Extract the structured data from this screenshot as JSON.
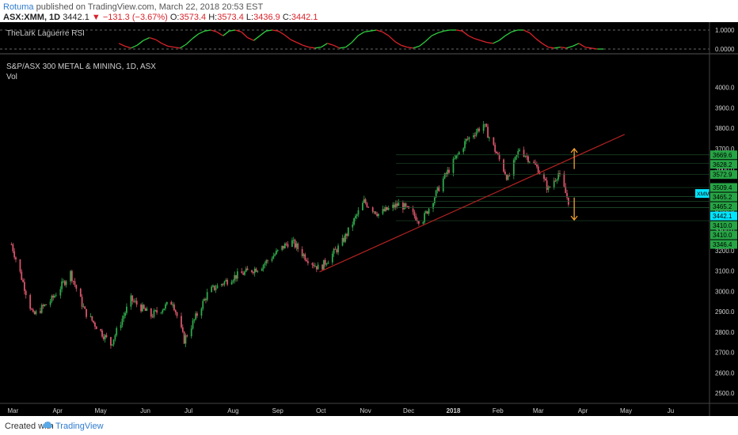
{
  "header": {
    "author": "Rotuma",
    "published_text": "published on TradingView.com, March 22, 2018 20:53 EST",
    "symbol_label": "ASX:XMM, 1D",
    "last_value": "3442.1",
    "change": "▼ −131.3 (−3.67%)",
    "open_label": "O:",
    "open_value": "3573.4",
    "high_label": "H:",
    "high_value": "3573.4",
    "low_label": "L:",
    "low_value": "3436.9",
    "close_label": "C:",
    "close_value": "3442.1"
  },
  "footer": {
    "created_text": "Created with",
    "brand": "TradingView"
  },
  "colors": {
    "background": "#000000",
    "bull": "#2ea84a",
    "bear": "#d6546a",
    "trendline": "#b22222",
    "arrow": "#f0a030",
    "price_tag": "#27a545",
    "last_tag": "#00e5ff",
    "rsi_up": "#2ecc40",
    "rsi_down": "#d8232a"
  },
  "chart_data": {
    "type": "candlestick",
    "title": "S&P/ASX 300 METAL & MINING, 1D, ASX",
    "subtitle": "Vol",
    "ylim": [
      2450,
      4150
    ],
    "yticks": [
      "4000.0",
      "3900.0",
      "3800.0",
      "3700.0",
      "3600.0",
      "3500.0",
      "3400.0",
      "3300.0",
      "3200.0",
      "3100.0",
      "3000.0",
      "2900.0",
      "2800.0",
      "2700.0",
      "2600.0",
      "2500.0"
    ],
    "x_labels": [
      "Mar",
      "Apr",
      "May",
      "Jun",
      "Jul",
      "Aug",
      "Sep",
      "Oct",
      "Nov",
      "Dec",
      "2018",
      "Feb",
      "Mar",
      "Apr",
      "May",
      "Ju"
    ],
    "price_path": [
      {
        "x": "2017-02-28",
        "y": 3230
      },
      {
        "x": "2017-03-15",
        "y": 2880
      },
      {
        "x": "2017-03-28",
        "y": 2960
      },
      {
        "x": "2017-04-10",
        "y": 3090
      },
      {
        "x": "2017-04-20",
        "y": 2900
      },
      {
        "x": "2017-05-08",
        "y": 2740
      },
      {
        "x": "2017-05-22",
        "y": 2960
      },
      {
        "x": "2017-06-05",
        "y": 2880
      },
      {
        "x": "2017-06-20",
        "y": 2950
      },
      {
        "x": "2017-06-28",
        "y": 2760
      },
      {
        "x": "2017-07-15",
        "y": 3000
      },
      {
        "x": "2017-08-01",
        "y": 3070
      },
      {
        "x": "2017-08-20",
        "y": 3120
      },
      {
        "x": "2017-09-10",
        "y": 3250
      },
      {
        "x": "2017-09-20",
        "y": 3170
      },
      {
        "x": "2017-09-30",
        "y": 3110
      },
      {
        "x": "2017-10-15",
        "y": 3230
      },
      {
        "x": "2017-10-31",
        "y": 3440
      },
      {
        "x": "2017-11-10",
        "y": 3380
      },
      {
        "x": "2017-11-25",
        "y": 3430
      },
      {
        "x": "2017-12-10",
        "y": 3340
      },
      {
        "x": "2017-12-25",
        "y": 3550
      },
      {
        "x": "2018-01-10",
        "y": 3740
      },
      {
        "x": "2018-01-22",
        "y": 3820
      },
      {
        "x": "2018-02-08",
        "y": 3550
      },
      {
        "x": "2018-02-16",
        "y": 3700
      },
      {
        "x": "2018-03-01",
        "y": 3600
      },
      {
        "x": "2018-03-08",
        "y": 3500
      },
      {
        "x": "2018-03-15",
        "y": 3580
      },
      {
        "x": "2018-03-22",
        "y": 3442
      }
    ],
    "trendline": {
      "start": {
        "x": "2017-09-30",
        "y": 3095
      },
      "end": {
        "x": "2018-04-30",
        "y": 3770
      }
    },
    "price_levels": [
      "3669.6",
      "3628.2",
      "3572.9",
      "3509.4",
      "3465.2",
      "3465.2",
      "3442.1",
      "3410.0",
      "3410.0",
      "3346.4"
    ],
    "last_price_tag": "XMM",
    "rsi": {
      "title": "TheLark Laguerre RSI",
      "yticks": [
        "1.0000",
        "0.0000"
      ],
      "values": [
        0.3,
        0.15,
        0.05,
        0.2,
        0.45,
        0.6,
        0.5,
        0.3,
        0.15,
        0.1,
        0.05,
        0.25,
        0.55,
        0.8,
        0.95,
        1.0,
        0.9,
        0.7,
        0.95,
        1.0,
        0.9,
        0.6,
        0.45,
        0.7,
        0.95,
        1.0,
        0.95,
        0.75,
        0.5,
        0.35,
        0.2,
        0.1,
        0.05,
        0.1,
        0.3,
        0.2,
        0.05,
        0.1,
        0.35,
        0.7,
        0.9,
        0.95,
        1.0,
        0.9,
        0.7,
        0.4,
        0.2,
        0.1,
        0.05,
        0.15,
        0.4,
        0.7,
        0.85,
        0.95,
        1.0,
        1.0,
        0.95,
        0.7,
        0.55,
        0.45,
        0.35,
        0.3,
        0.45,
        0.7,
        0.9,
        1.0,
        1.0,
        0.85,
        0.55,
        0.3,
        0.1,
        0.05,
        0.1,
        0.05,
        0.15,
        0.3,
        0.1,
        0.05,
        0.0,
        0.0
      ]
    },
    "arrows": [
      {
        "direction": "up",
        "x": "2018-03-26",
        "y_from": 3600,
        "y_to": 3700
      },
      {
        "direction": "down",
        "x": "2018-03-26",
        "y_from": 3460,
        "y_to": 3350
      }
    ]
  }
}
